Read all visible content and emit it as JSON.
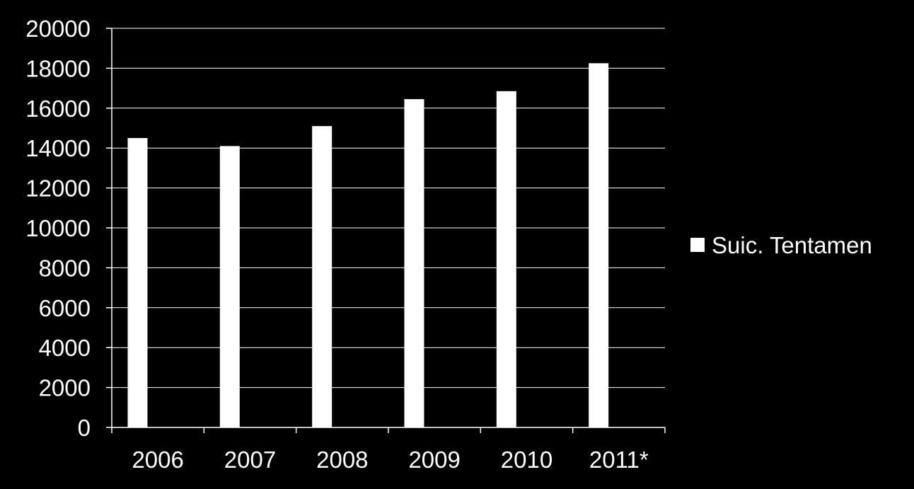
{
  "chart_data": {
    "type": "bar",
    "title": "",
    "xlabel": "",
    "ylabel": "",
    "categories": [
      "2006",
      "2007",
      "2008",
      "2009",
      "2010",
      "2011*"
    ],
    "series": [
      {
        "name": "Suic. Tentamen",
        "values": [
          14500,
          14100,
          15100,
          16450,
          16850,
          18250
        ],
        "color": "#ffffff"
      }
    ],
    "ylim": [
      0,
      20000
    ],
    "yticks": [
      0,
      2000,
      4000,
      6000,
      8000,
      10000,
      12000,
      14000,
      16000,
      18000,
      20000
    ],
    "grid": true,
    "legend_position": "right",
    "background": "#000000",
    "axis_color": "#ffffff"
  }
}
